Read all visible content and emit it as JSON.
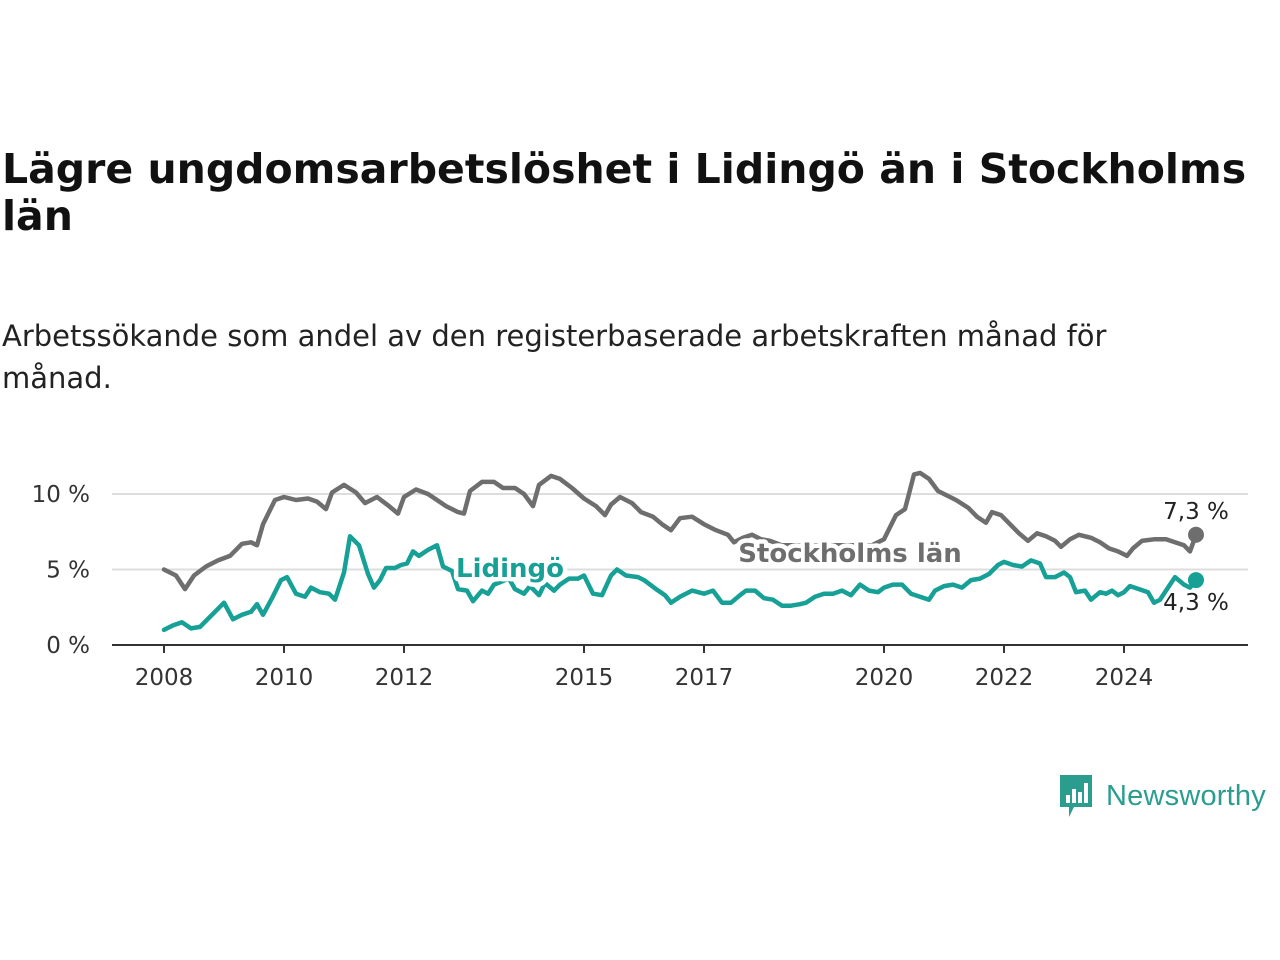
{
  "title": "Lägre ungdomsarbetslöshet i Lidingö än i Stockholms län",
  "subtitle": "Arbetssökande som andel av den registerbaserade arbetskraften månad för månad.",
  "brand": {
    "name": "Newsworthy",
    "color": "#2a9d8f",
    "icon": "newsworthy-logo-icon"
  },
  "colors": {
    "stockholm": "#6e6e6e",
    "lidingo": "#16a096",
    "grid": "#dddddd",
    "axis": "#333333"
  },
  "chart_data": {
    "type": "line",
    "title": "Lägre ungdomsarbetslöshet i Lidingö än i Stockholms län",
    "xlabel": "",
    "ylabel": "",
    "xlim": [
      2007.9,
      2025.2
    ],
    "ylim": [
      0,
      10
    ],
    "x_ticks": [
      {
        "value": 2008,
        "label": "2008"
      },
      {
        "value": 2010,
        "label": "2010"
      },
      {
        "value": 2012,
        "label": "2012"
      },
      {
        "value": 2015,
        "label": "2015"
      },
      {
        "value": 2017,
        "label": "2017"
      },
      {
        "value": 2020,
        "label": "2020"
      },
      {
        "value": 2022,
        "label": "2022"
      },
      {
        "value": 2024,
        "label": "2024"
      }
    ],
    "y_ticks": [
      {
        "value": 0,
        "label": "0 %"
      },
      {
        "value": 5,
        "label": "5 %"
      },
      {
        "value": 10,
        "label": "10 %"
      }
    ],
    "series": [
      {
        "name": "Stockholms län",
        "key": "stockholm",
        "end_label": "7,3 %",
        "points": [
          [
            2008.0,
            5.0
          ],
          [
            2008.2,
            4.6
          ],
          [
            2008.35,
            3.7
          ],
          [
            2008.5,
            4.6
          ],
          [
            2008.7,
            5.2
          ],
          [
            2008.9,
            5.6
          ],
          [
            2009.1,
            5.9
          ],
          [
            2009.3,
            6.7
          ],
          [
            2009.45,
            6.8
          ],
          [
            2009.55,
            6.6
          ],
          [
            2009.65,
            8.0
          ],
          [
            2009.85,
            9.6
          ],
          [
            2010.0,
            9.8
          ],
          [
            2010.2,
            9.6
          ],
          [
            2010.4,
            9.7
          ],
          [
            2010.55,
            9.5
          ],
          [
            2010.7,
            9.0
          ],
          [
            2010.8,
            10.1
          ],
          [
            2011.0,
            10.6
          ],
          [
            2011.2,
            10.1
          ],
          [
            2011.35,
            9.4
          ],
          [
            2011.55,
            9.8
          ],
          [
            2011.75,
            9.2
          ],
          [
            2011.9,
            8.7
          ],
          [
            2012.0,
            9.8
          ],
          [
            2012.2,
            10.3
          ],
          [
            2012.4,
            10.0
          ],
          [
            2012.55,
            9.6
          ],
          [
            2012.7,
            9.2
          ],
          [
            2012.9,
            8.8
          ],
          [
            2013.0,
            8.7
          ],
          [
            2013.1,
            10.2
          ],
          [
            2013.3,
            10.8
          ],
          [
            2013.5,
            10.8
          ],
          [
            2013.65,
            10.4
          ],
          [
            2013.85,
            10.4
          ],
          [
            2014.0,
            10.0
          ],
          [
            2014.15,
            9.2
          ],
          [
            2014.25,
            10.6
          ],
          [
            2014.45,
            11.2
          ],
          [
            2014.6,
            11.0
          ],
          [
            2014.8,
            10.4
          ],
          [
            2015.0,
            9.7
          ],
          [
            2015.2,
            9.2
          ],
          [
            2015.35,
            8.6
          ],
          [
            2015.45,
            9.3
          ],
          [
            2015.6,
            9.8
          ],
          [
            2015.8,
            9.4
          ],
          [
            2015.95,
            8.8
          ],
          [
            2016.15,
            8.5
          ],
          [
            2016.3,
            8.0
          ],
          [
            2016.45,
            7.6
          ],
          [
            2016.6,
            8.4
          ],
          [
            2016.8,
            8.5
          ],
          [
            2017.0,
            8.0
          ],
          [
            2017.2,
            7.6
          ],
          [
            2017.4,
            7.3
          ],
          [
            2017.5,
            6.8
          ],
          [
            2017.65,
            7.1
          ],
          [
            2017.8,
            7.3
          ],
          [
            2017.95,
            7.0
          ],
          [
            2018.1,
            6.9
          ],
          [
            2018.3,
            6.6
          ],
          [
            2019.8,
            6.6
          ],
          [
            2020.0,
            7.0
          ],
          [
            2020.2,
            8.6
          ],
          [
            2020.35,
            9.0
          ],
          [
            2020.5,
            11.3
          ],
          [
            2020.6,
            11.4
          ],
          [
            2020.75,
            11.0
          ],
          [
            2020.9,
            10.2
          ],
          [
            2021.05,
            9.9
          ],
          [
            2021.2,
            9.6
          ],
          [
            2021.4,
            9.1
          ],
          [
            2021.55,
            8.5
          ],
          [
            2021.7,
            8.1
          ],
          [
            2021.8,
            8.8
          ],
          [
            2021.95,
            8.6
          ],
          [
            2022.1,
            8.0
          ],
          [
            2022.25,
            7.4
          ],
          [
            2022.4,
            6.9
          ],
          [
            2022.55,
            7.4
          ],
          [
            2022.7,
            7.2
          ],
          [
            2022.85,
            6.9
          ],
          [
            2022.95,
            6.5
          ],
          [
            2023.1,
            7.0
          ],
          [
            2023.25,
            7.3
          ],
          [
            2023.45,
            7.1
          ],
          [
            2023.6,
            6.8
          ],
          [
            2023.75,
            6.4
          ],
          [
            2023.9,
            6.2
          ],
          [
            2024.05,
            5.9
          ],
          [
            2024.15,
            6.4
          ],
          [
            2024.3,
            6.9
          ],
          [
            2024.5,
            7.0
          ],
          [
            2024.7,
            7.0
          ],
          [
            2024.85,
            6.8
          ],
          [
            2025.0,
            6.6
          ],
          [
            2025.1,
            6.2
          ],
          [
            2025.2,
            7.3
          ]
        ]
      },
      {
        "name": "Lidingö",
        "key": "lidingo",
        "end_label": "4,3 %",
        "points": [
          [
            2008.0,
            1.0
          ],
          [
            2008.15,
            1.3
          ],
          [
            2008.3,
            1.5
          ],
          [
            2008.45,
            1.1
          ],
          [
            2008.6,
            1.2
          ],
          [
            2008.75,
            1.8
          ],
          [
            2008.9,
            2.4
          ],
          [
            2009.0,
            2.8
          ],
          [
            2009.15,
            1.7
          ],
          [
            2009.3,
            2.0
          ],
          [
            2009.45,
            2.2
          ],
          [
            2009.55,
            2.7
          ],
          [
            2009.65,
            2.0
          ],
          [
            2009.8,
            3.1
          ],
          [
            2009.95,
            4.3
          ],
          [
            2010.05,
            4.5
          ],
          [
            2010.2,
            3.4
          ],
          [
            2010.35,
            3.2
          ],
          [
            2010.45,
            3.8
          ],
          [
            2010.6,
            3.5
          ],
          [
            2010.75,
            3.4
          ],
          [
            2010.85,
            3.0
          ],
          [
            2011.0,
            4.8
          ],
          [
            2011.1,
            7.2
          ],
          [
            2011.25,
            6.6
          ],
          [
            2011.4,
            4.7
          ],
          [
            2011.5,
            3.8
          ],
          [
            2011.6,
            4.3
          ],
          [
            2011.7,
            5.1
          ],
          [
            2011.85,
            5.1
          ],
          [
            2011.95,
            5.3
          ],
          [
            2012.05,
            5.4
          ],
          [
            2012.15,
            6.2
          ],
          [
            2012.25,
            5.9
          ],
          [
            2012.4,
            6.3
          ],
          [
            2012.55,
            6.6
          ],
          [
            2012.65,
            5.2
          ],
          [
            2012.8,
            4.9
          ],
          [
            2012.9,
            3.7
          ],
          [
            2013.05,
            3.6
          ],
          [
            2013.15,
            2.9
          ],
          [
            2013.3,
            3.6
          ],
          [
            2013.4,
            3.4
          ],
          [
            2013.5,
            4.0
          ],
          [
            2013.75,
            4.4
          ],
          [
            2013.85,
            3.7
          ],
          [
            2014.0,
            3.4
          ],
          [
            2014.1,
            3.9
          ],
          [
            2014.25,
            3.3
          ],
          [
            2014.35,
            4.1
          ],
          [
            2014.5,
            3.6
          ],
          [
            2014.6,
            4.0
          ],
          [
            2014.75,
            4.4
          ],
          [
            2014.9,
            4.4
          ],
          [
            2015.0,
            4.6
          ],
          [
            2015.15,
            3.4
          ],
          [
            2015.3,
            3.3
          ],
          [
            2015.45,
            4.6
          ],
          [
            2015.55,
            5.0
          ],
          [
            2015.7,
            4.6
          ],
          [
            2015.9,
            4.5
          ],
          [
            2016.0,
            4.3
          ],
          [
            2016.2,
            3.7
          ],
          [
            2016.35,
            3.3
          ],
          [
            2016.45,
            2.8
          ],
          [
            2016.6,
            3.2
          ],
          [
            2016.8,
            3.6
          ],
          [
            2017.0,
            3.4
          ],
          [
            2017.15,
            3.6
          ],
          [
            2017.3,
            2.8
          ],
          [
            2017.45,
            2.8
          ],
          [
            2017.6,
            3.3
          ],
          [
            2017.7,
            3.6
          ],
          [
            2017.85,
            3.6
          ],
          [
            2018.0,
            3.1
          ],
          [
            2018.15,
            3.0
          ],
          [
            2018.3,
            2.6
          ],
          [
            2018.45,
            2.6
          ],
          [
            2018.6,
            2.7
          ],
          [
            2018.7,
            2.8
          ],
          [
            2018.85,
            3.2
          ],
          [
            2019.0,
            3.4
          ],
          [
            2019.15,
            3.4
          ],
          [
            2019.3,
            3.6
          ],
          [
            2019.45,
            3.3
          ],
          [
            2019.6,
            4.0
          ],
          [
            2019.75,
            3.6
          ],
          [
            2019.9,
            3.5
          ],
          [
            2020.0,
            3.8
          ],
          [
            2020.15,
            4.0
          ],
          [
            2020.3,
            4.0
          ],
          [
            2020.45,
            3.4
          ],
          [
            2020.6,
            3.2
          ],
          [
            2020.75,
            3.0
          ],
          [
            2020.85,
            3.6
          ],
          [
            2021.0,
            3.9
          ],
          [
            2021.15,
            4.0
          ],
          [
            2021.3,
            3.8
          ],
          [
            2021.45,
            4.3
          ],
          [
            2021.6,
            4.4
          ],
          [
            2021.75,
            4.7
          ],
          [
            2021.9,
            5.3
          ],
          [
            2022.0,
            5.5
          ],
          [
            2022.15,
            5.3
          ],
          [
            2022.3,
            5.2
          ],
          [
            2022.45,
            5.6
          ],
          [
            2022.6,
            5.4
          ],
          [
            2022.7,
            4.5
          ],
          [
            2022.85,
            4.5
          ],
          [
            2023.0,
            4.8
          ],
          [
            2023.1,
            4.5
          ],
          [
            2023.2,
            3.5
          ],
          [
            2023.35,
            3.6
          ],
          [
            2023.45,
            3.0
          ],
          [
            2023.6,
            3.5
          ],
          [
            2023.7,
            3.4
          ],
          [
            2023.8,
            3.6
          ],
          [
            2023.9,
            3.3
          ],
          [
            2024.0,
            3.5
          ],
          [
            2024.1,
            3.9
          ],
          [
            2024.25,
            3.7
          ],
          [
            2024.4,
            3.5
          ],
          [
            2024.5,
            2.8
          ],
          [
            2024.6,
            3.0
          ],
          [
            2024.7,
            3.6
          ],
          [
            2024.85,
            4.5
          ],
          [
            2025.0,
            4.0
          ],
          [
            2025.1,
            3.8
          ],
          [
            2025.2,
            4.3
          ]
        ]
      }
    ],
    "labels": [
      {
        "series": "lidingo",
        "text": "Lidingö"
      },
      {
        "series": "stockholm",
        "text": "Stockholms län"
      }
    ]
  }
}
